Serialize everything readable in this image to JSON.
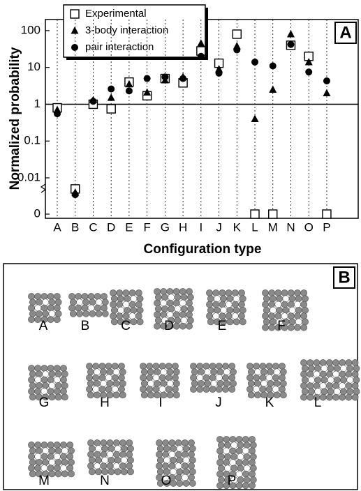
{
  "chart_data": {
    "type": "scatter",
    "panel_label": "A",
    "ylabel": "Normalized probability",
    "xlabel": "Configuration type",
    "categories": [
      "A",
      "B",
      "C",
      "D",
      "E",
      "F",
      "G",
      "H",
      "I",
      "J",
      "K",
      "L",
      "M",
      "N",
      "O",
      "P"
    ],
    "log_y": true,
    "axis_break": true,
    "ylim": [
      0,
      200
    ],
    "yticks": [
      0,
      0.01,
      0.1,
      1,
      10,
      100
    ],
    "hline": 1,
    "grid_x": true,
    "legend": "top-left",
    "series": [
      {
        "name": "Experimental",
        "marker": "open-square",
        "color": "#000000",
        "values": [
          0.8,
          0.005,
          1.0,
          0.75,
          4,
          1.7,
          5,
          3.8,
          28,
          13,
          80,
          0,
          0,
          40,
          20,
          0
        ]
      },
      {
        "name": "3-body interaction",
        "marker": "triangle",
        "color": "#000000",
        "values": [
          0.7,
          0.004,
          1.3,
          1.5,
          3.5,
          2.1,
          4.5,
          5.5,
          45,
          9,
          38,
          0.4,
          2.5,
          80,
          14,
          2
        ]
      },
      {
        "name": "pair interaction",
        "marker": "circle",
        "color": "#000000",
        "values": [
          0.55,
          0.0035,
          1.2,
          2.6,
          2.3,
          5,
          5.5,
          5,
          20,
          7,
          30,
          14,
          11,
          42,
          7.5,
          4.3
        ]
      }
    ]
  },
  "panel_b": {
    "label": "B",
    "clusters": [
      "A",
      "B",
      "C",
      "D",
      "E",
      "F",
      "G",
      "H",
      "I",
      "J",
      "K",
      "L",
      "M",
      "N",
      "O",
      "P"
    ]
  }
}
